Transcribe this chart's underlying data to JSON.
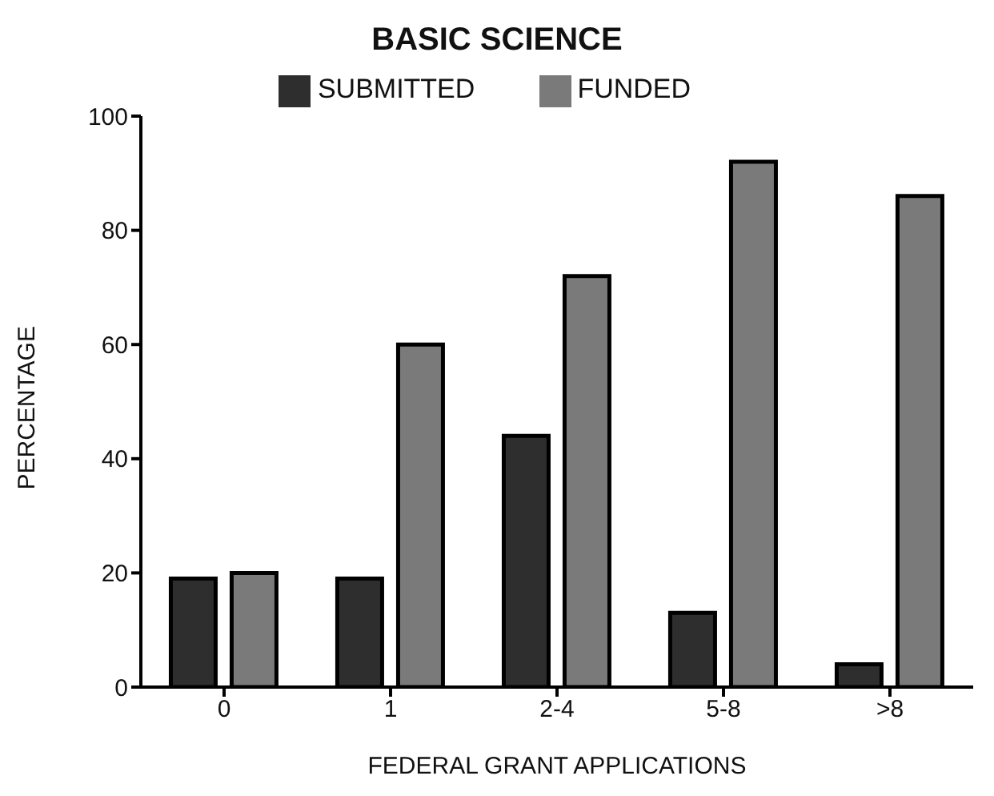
{
  "chart_data": {
    "type": "bar",
    "title": "BASIC SCIENCE",
    "xlabel": "FEDERAL GRANT APPLICATIONS",
    "ylabel": "PERCENTAGE",
    "categories": [
      "0",
      "1",
      "2-4",
      "5-8",
      ">8"
    ],
    "series": [
      {
        "name": "SUBMITTED",
        "color": "#2e2e2e",
        "values": [
          19,
          19,
          44,
          13,
          4
        ]
      },
      {
        "name": "FUNDED",
        "color": "#7a7a7a",
        "values": [
          20,
          60,
          72,
          92,
          86
        ]
      }
    ],
    "ylim": [
      0,
      100
    ],
    "yticks": [
      0,
      20,
      40,
      60,
      80,
      100
    ],
    "grid": false,
    "legend": "top"
  }
}
